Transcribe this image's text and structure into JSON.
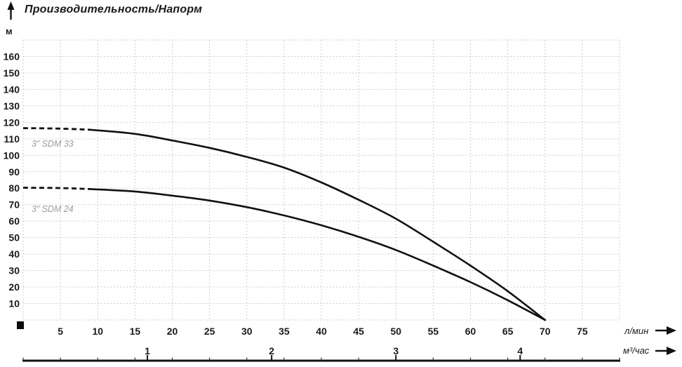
{
  "title": "Производительность/Напорм",
  "y_axis_unit": "м",
  "x_axis_unit_primary": "л/мин",
  "x_axis_unit_secondary": "м³/час",
  "colors": {
    "curve": "#111111",
    "grid": "#cccccc",
    "text": "#1a1a1a",
    "series_label": "#9c9c9c"
  },
  "chart_data": {
    "type": "line",
    "title": "Производительность/Напорм",
    "ylabel": "м",
    "xlabel_primary": "л/мин",
    "xlabel_secondary": "м³/час",
    "x_range_l_min": [
      0,
      80
    ],
    "y_range_m": [
      0,
      170
    ],
    "grid": true,
    "y_ticks_m": [
      10,
      20,
      30,
      40,
      50,
      60,
      70,
      80,
      90,
      100,
      110,
      120,
      130,
      140,
      150,
      160
    ],
    "x_ticks_l_min": [
      5,
      10,
      15,
      20,
      25,
      30,
      35,
      40,
      45,
      50,
      55,
      60,
      65,
      70,
      75
    ],
    "x_ticks_m3_h": [
      1,
      2,
      3,
      4
    ],
    "series": [
      {
        "name": "3” SDM 33",
        "dashed_until_l_min": 9,
        "points_l_min_m": [
          [
            0,
            116.5
          ],
          [
            5,
            116.2
          ],
          [
            9,
            115.5
          ],
          [
            15,
            113
          ],
          [
            20,
            109
          ],
          [
            25,
            104.5
          ],
          [
            30,
            99
          ],
          [
            35,
            92.5
          ],
          [
            40,
            83.5
          ],
          [
            45,
            73
          ],
          [
            50,
            61.5
          ],
          [
            55,
            47.5
          ],
          [
            60,
            33
          ],
          [
            65,
            17.5
          ],
          [
            70,
            0
          ]
        ]
      },
      {
        "name": "3” SDM 24",
        "dashed_until_l_min": 9,
        "points_l_min_m": [
          [
            0,
            80.3
          ],
          [
            5,
            80.1
          ],
          [
            9,
            79.5
          ],
          [
            15,
            78
          ],
          [
            20,
            75.5
          ],
          [
            25,
            72.5
          ],
          [
            30,
            68.5
          ],
          [
            35,
            63.5
          ],
          [
            40,
            57.5
          ],
          [
            45,
            50.5
          ],
          [
            50,
            42.5
          ],
          [
            55,
            33
          ],
          [
            60,
            23
          ],
          [
            65,
            12
          ],
          [
            70,
            0
          ]
        ]
      }
    ]
  }
}
